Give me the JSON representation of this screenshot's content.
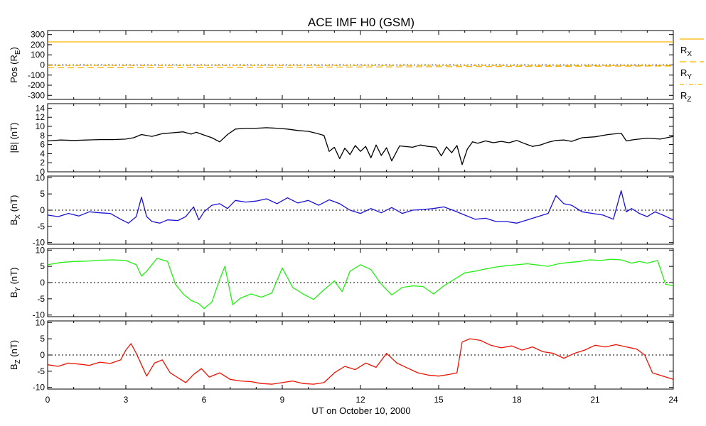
{
  "title": "ACE IMF H0 (GSM)",
  "chart_data": [
    {
      "type": "line",
      "ylabel": "Pos (R",
      "ylabel_sub": "E",
      "ylabel_tail": ")",
      "yticks": [
        300,
        200,
        100,
        0,
        -100,
        -200,
        -300
      ],
      "ylim": [
        -340,
        340
      ],
      "zero_line": true,
      "series": [
        {
          "name": "R",
          "sub": "X",
          "color": "#ffb300",
          "dash": "",
          "x": [
            0,
            24
          ],
          "y": [
            228,
            228
          ]
        },
        {
          "name": "R",
          "sub": "Y",
          "color": "#ffb300",
          "dash": "9,5",
          "x": [
            0,
            8,
            18,
            24
          ],
          "y": [
            -28,
            -24,
            -14,
            -10
          ]
        },
        {
          "name": "R",
          "sub": "Z",
          "color": "#ffb300",
          "dash": "6,3,1,3",
          "x": [
            0,
            24
          ],
          "y": [
            -4,
            -4
          ]
        }
      ]
    },
    {
      "type": "line",
      "ylabel": "|B| (nT)",
      "yticks": [
        14,
        12,
        10,
        8,
        6,
        4,
        2,
        0
      ],
      "ylim": [
        0,
        15
      ],
      "zero_line": false,
      "series": [
        {
          "color": "#000000",
          "x": [
            0,
            0.5,
            1,
            1.5,
            2,
            2.5,
            3,
            3.3,
            3.6,
            4,
            4.4,
            4.8,
            5.2,
            5.5,
            5.7,
            6,
            6.3,
            6.6,
            6.9,
            7.2,
            7.6,
            8,
            8.4,
            8.8,
            9.2,
            9.6,
            10,
            10.3,
            10.6,
            10.8,
            11,
            11.2,
            11.4,
            11.6,
            11.8,
            12,
            12.2,
            12.4,
            12.6,
            12.8,
            13,
            13.2,
            13.5,
            14,
            14.3,
            14.6,
            14.9,
            15.1,
            15.3,
            15.5,
            15.7,
            15.9,
            16.1,
            16.3,
            16.5,
            16.8,
            17.1,
            17.4,
            17.7,
            18,
            18.3,
            18.6,
            18.9,
            19.2,
            19.5,
            19.8,
            20.1,
            20.5,
            21,
            21.5,
            22,
            22.2,
            22.5,
            23,
            23.5,
            24
          ],
          "y": [
            6.8,
            7,
            6.9,
            7,
            7.1,
            7.1,
            7.2,
            7.5,
            8.2,
            7.8,
            8.4,
            8.6,
            8.8,
            8.3,
            8.7,
            8.1,
            7.5,
            6.6,
            8.2,
            9.4,
            9.6,
            9.6,
            9.7,
            9.6,
            9.4,
            9.1,
            8.9,
            8.5,
            8,
            4.5,
            5.4,
            2.9,
            5.2,
            3.8,
            5.8,
            4.5,
            5.6,
            3.1,
            5.9,
            3.6,
            5.3,
            2.4,
            5.7,
            5.4,
            5.9,
            5.6,
            5.4,
            3.5,
            5.5,
            4.2,
            5.8,
            1.6,
            5,
            6.6,
            6.3,
            6.8,
            6.4,
            6.7,
            6.4,
            6.9,
            6.2,
            5.6,
            5.9,
            6.5,
            6.9,
            7,
            6.7,
            7.5,
            7.7,
            8.2,
            8.5,
            6.8,
            7.1,
            7.4,
            7.2,
            7.8
          ]
        }
      ]
    },
    {
      "type": "line",
      "ylabel": "B",
      "ylabel_sub": "X",
      "ylabel_tail": " (nT)",
      "yticks": [
        10,
        5,
        0,
        -5,
        -10
      ],
      "ylim": [
        -10.5,
        10.5
      ],
      "zero_line": true,
      "series": [
        {
          "color": "#1a10d6",
          "x": [
            0,
            0.4,
            0.8,
            1.2,
            1.6,
            2,
            2.4,
            2.8,
            3.1,
            3.4,
            3.6,
            3.8,
            4,
            4.3,
            4.6,
            5,
            5.3,
            5.6,
            5.8,
            6,
            6.3,
            6.6,
            6.9,
            7.2,
            7.6,
            8,
            8.4,
            8.8,
            9.2,
            9.6,
            10,
            10.4,
            10.8,
            11.2,
            11.6,
            12,
            12.4,
            12.8,
            13.2,
            13.6,
            14,
            14.4,
            14.8,
            15.2,
            15.6,
            16,
            16.4,
            16.8,
            17.2,
            17.6,
            18,
            18.4,
            18.8,
            19.2,
            19.5,
            19.8,
            20.1,
            20.5,
            20.9,
            21.3,
            21.7,
            22,
            22.2,
            22.4,
            22.7,
            23,
            23.3,
            23.6,
            24
          ],
          "y": [
            -1.5,
            -2,
            -1,
            -1.8,
            -0.5,
            -0.8,
            -1,
            -2.8,
            -4,
            -2,
            4,
            -2,
            -3.5,
            -4,
            -3,
            -3.2,
            -2,
            1,
            -3,
            -0.5,
            1.5,
            2,
            0.5,
            3,
            2.5,
            2.8,
            3.5,
            2,
            3.8,
            2.2,
            3,
            1.5,
            3.2,
            2,
            0,
            -1,
            0.5,
            -0.8,
            0.8,
            -1,
            0,
            0.2,
            0.5,
            1,
            -0.2,
            -1.5,
            -2.8,
            -2.5,
            -3.5,
            -3.5,
            -4,
            -3,
            -2,
            -1,
            4.5,
            2,
            1.5,
            -0.5,
            -1,
            -1.5,
            -2.8,
            6,
            -0.5,
            0.5,
            -1,
            -2,
            -0.5,
            -1.5,
            -3
          ]
        }
      ]
    },
    {
      "type": "line",
      "ylabel": "B",
      "ylabel_sub": "Y",
      "ylabel_tail": " (nT)",
      "yticks": [
        10,
        5,
        0,
        -5,
        -10
      ],
      "ylim": [
        -10.5,
        10.5
      ],
      "zero_line": true,
      "series": [
        {
          "color": "#22ee11",
          "x": [
            0,
            0.5,
            1,
            1.5,
            2,
            2.5,
            3,
            3.4,
            3.6,
            3.8,
            4.2,
            4.6,
            4.9,
            5.2,
            5.5,
            5.8,
            6,
            6.3,
            6.6,
            6.8,
            7.1,
            7.4,
            7.8,
            8.2,
            8.6,
            9,
            9.4,
            9.8,
            10.2,
            10.6,
            11,
            11.3,
            11.6,
            12,
            12.4,
            12.8,
            13.2,
            13.6,
            14,
            14.4,
            14.8,
            15.2,
            15.6,
            16,
            16.4,
            16.8,
            17.2,
            17.6,
            18,
            18.4,
            18.8,
            19.2,
            19.6,
            20,
            20.4,
            20.8,
            21.2,
            21.6,
            22,
            22.4,
            22.7,
            23,
            23.4,
            23.7,
            24
          ],
          "y": [
            5.5,
            6.2,
            6.5,
            6.6,
            6.9,
            7,
            6.8,
            5.5,
            2,
            3.5,
            7.5,
            6.5,
            -0.5,
            -3.5,
            -5.5,
            -6.5,
            -8,
            -6,
            1,
            5,
            -6.8,
            -4.8,
            -3.5,
            -4.5,
            -3.2,
            4.5,
            -1.5,
            -3.5,
            -5.2,
            -2.2,
            0.5,
            -2.8,
            3.5,
            5.5,
            4,
            -0.5,
            -3.8,
            -1.5,
            -1,
            -1.2,
            -3.5,
            -1,
            1,
            3,
            3.5,
            4.2,
            4.8,
            5.2,
            5.5,
            5.8,
            5.4,
            5,
            5.8,
            6.2,
            6.5,
            7,
            6.8,
            7.2,
            7,
            6,
            6.5,
            6,
            6.8,
            -0.5,
            -1
          ]
        }
      ]
    },
    {
      "type": "line",
      "ylabel": "B",
      "ylabel_sub": "Z",
      "ylabel_tail": " (nT)",
      "yticks": [
        10,
        5,
        0,
        -5,
        -10
      ],
      "ylim": [
        -10.5,
        10.5
      ],
      "zero_line": true,
      "series": [
        {
          "color": "#ee1100",
          "x": [
            0,
            0.4,
            0.8,
            1.2,
            1.6,
            2,
            2.4,
            2.8,
            3,
            3.2,
            3.4,
            3.6,
            3.8,
            4.1,
            4.4,
            4.7,
            5,
            5.3,
            5.6,
            5.9,
            6.2,
            6.6,
            7,
            7.4,
            7.8,
            8.2,
            8.6,
            9,
            9.4,
            9.8,
            10.2,
            10.6,
            11,
            11.4,
            11.8,
            12.2,
            12.6,
            13,
            13.4,
            13.8,
            14.2,
            14.6,
            15,
            15.4,
            15.7,
            15.9,
            16.2,
            16.6,
            17,
            17.4,
            17.8,
            18.2,
            18.6,
            19,
            19.4,
            19.8,
            20.2,
            20.6,
            21,
            21.4,
            21.8,
            22.2,
            22.6,
            22.9,
            23.2,
            23.6,
            24
          ],
          "y": [
            -3,
            -3.5,
            -2.5,
            -2.8,
            -3.2,
            -2.2,
            -2.6,
            -1.5,
            1.5,
            3.5,
            0.5,
            -3,
            -6.5,
            -2.5,
            -1.5,
            -5.5,
            -7,
            -8.5,
            -6,
            -4.2,
            -6.8,
            -5.5,
            -7.5,
            -8,
            -8.2,
            -8.8,
            -9,
            -8.5,
            -8,
            -8.8,
            -9,
            -8.5,
            -5.5,
            -3.5,
            -4.5,
            -2.5,
            -3.8,
            0.5,
            -2.5,
            -4,
            -5.5,
            -6.2,
            -6.5,
            -6,
            -5.5,
            4,
            5,
            4.5,
            3,
            2.2,
            2.8,
            1.5,
            2.5,
            1,
            0.5,
            -1,
            0.5,
            1.5,
            3,
            2.5,
            3.2,
            2.5,
            1.8,
            0,
            -5.5,
            -6.5,
            -7.5
          ]
        }
      ]
    }
  ],
  "x_axis": {
    "ticks": [
      "0",
      "3",
      "6",
      "9",
      "12",
      "15",
      "18",
      "21",
      "24"
    ],
    "xlim": [
      0,
      24
    ],
    "label": "UT on October 10, 2000"
  },
  "legend": [
    {
      "name": "R",
      "sub": "X",
      "color": "#ffb300",
      "dash": ""
    },
    {
      "name": "R",
      "sub": "Y",
      "color": "#ffb300",
      "dash": "9,5"
    },
    {
      "name": "R",
      "sub": "Z",
      "color": "#ffb300",
      "dash": "6,3,1,3"
    }
  ]
}
